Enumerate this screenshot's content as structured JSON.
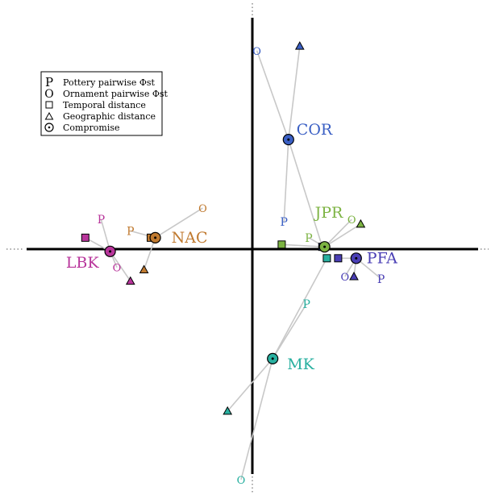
{
  "chart_data": {
    "type": "scatter",
    "title": "",
    "xlabel": "",
    "ylabel": "",
    "xlim": [
      -1.0,
      1.0
    ],
    "ylim": [
      -1.0,
      1.0
    ],
    "grid": false,
    "legend_position": "top-left",
    "legend": [
      {
        "symbol": "P",
        "label": "Pottery pairwise Φst"
      },
      {
        "symbol": "O",
        "label": "Ornament pairwise Φst"
      },
      {
        "symbol": "square",
        "label": "Temporal distance"
      },
      {
        "symbol": "triangle",
        "label": "Geographic distance"
      },
      {
        "symbol": "circle-dot",
        "label": "Compromise"
      }
    ],
    "groups": [
      {
        "label": "COR",
        "color": "#3a5fc4",
        "compromise": [
          0.16,
          0.48
        ],
        "pottery": [
          0.14,
          0.12
        ],
        "ornament": [
          0.02,
          0.87
        ],
        "temporal": [
          0.31,
          0.01
        ],
        "geographic": [
          0.21,
          0.89
        ]
      },
      {
        "label": "JPR",
        "color": "#7cb342",
        "compromise": [
          0.32,
          0.01
        ],
        "pottery": [
          0.25,
          0.05
        ],
        "ornament": [
          0.44,
          0.13
        ],
        "temporal": [
          0.13,
          0.02
        ],
        "geographic": [
          0.48,
          0.11
        ]
      },
      {
        "label": "PFA",
        "color": "#4a3fb5",
        "compromise": [
          0.46,
          -0.04
        ],
        "pottery": [
          0.57,
          -0.13
        ],
        "ornament": [
          0.41,
          -0.12
        ],
        "temporal": [
          0.38,
          -0.04
        ],
        "geographic": [
          0.45,
          -0.12
        ]
      },
      {
        "label": "NAC",
        "color": "#c07a30",
        "compromise": [
          -0.43,
          0.05
        ],
        "pottery": [
          -0.54,
          0.08
        ],
        "ornament": [
          -0.22,
          0.18
        ],
        "temporal": [
          -0.45,
          0.05
        ],
        "geographic": [
          -0.48,
          -0.09
        ]
      },
      {
        "label": "LBK",
        "color": "#b8359b",
        "compromise": [
          -0.63,
          -0.01
        ],
        "pottery": [
          -0.67,
          0.13
        ],
        "ornament": [
          -0.6,
          -0.08
        ],
        "temporal": [
          -0.74,
          0.05
        ],
        "geographic": [
          -0.54,
          -0.14
        ]
      },
      {
        "label": "MK",
        "color": "#29b0a0",
        "compromise": [
          0.09,
          -0.48
        ],
        "pottery": [
          0.24,
          -0.24
        ],
        "ornament": [
          -0.05,
          -1.01
        ],
        "temporal": [
          0.33,
          -0.04
        ],
        "geographic": [
          -0.11,
          -0.71
        ]
      }
    ]
  }
}
